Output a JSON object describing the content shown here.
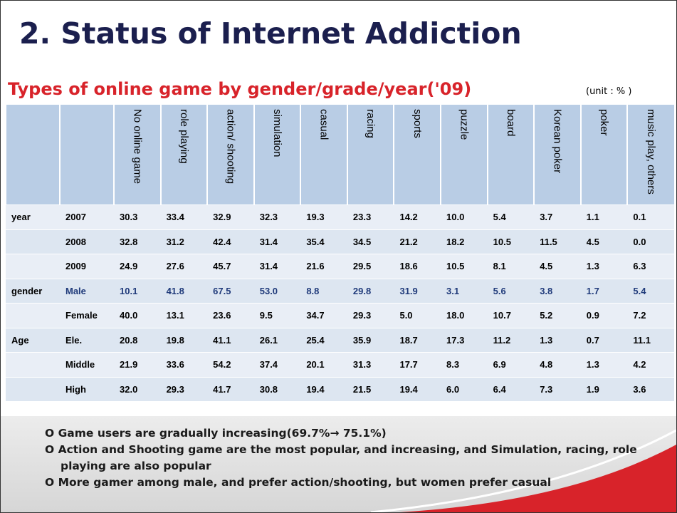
{
  "header": {
    "title": "2. Status of Internet Addiction",
    "subtitle": "Types of online game by gender/grade/year('09)",
    "unit": "(unit : % )"
  },
  "table": {
    "columns": [
      "No online game",
      "role playing",
      "action/ shooting",
      "simulation",
      "casual",
      "racing",
      "sports",
      "puzzle",
      "board",
      "Korean poker",
      "poker",
      "music play, others"
    ],
    "groups": [
      {
        "label": "year",
        "rows": [
          {
            "label": "2007",
            "values": [
              "30.3",
              "33.4",
              "32.9",
              "32.3",
              "19.3",
              "23.3",
              "14.2",
              "10.0",
              "5.4",
              "3.7",
              "1.1",
              "0.1"
            ]
          },
          {
            "label": "2008",
            "values": [
              "32.8",
              "31.2",
              "42.4",
              "31.4",
              "35.4",
              "34.5",
              "21.2",
              "18.2",
              "10.5",
              "11.5",
              "4.5",
              "0.0"
            ]
          },
          {
            "label": "2009",
            "values": [
              "24.9",
              "27.6",
              "45.7",
              "31.4",
              "21.6",
              "29.5",
              "18.6",
              "10.5",
              "8.1",
              "4.5",
              "1.3",
              "6.3"
            ]
          }
        ]
      },
      {
        "label": "gender",
        "rows": [
          {
            "label": "Male",
            "color": "#1f3a7a",
            "values": [
              "10.1",
              "41.8",
              "67.5",
              "53.0",
              "8.8",
              "29.8",
              "31.9",
              "3.1",
              "5.6",
              "3.8",
              "1.7",
              "5.4"
            ]
          },
          {
            "label": "Female",
            "values": [
              "40.0",
              "13.1",
              "23.6",
              "9.5",
              "34.7",
              "29.3",
              "5.0",
              "18.0",
              "10.7",
              "5.2",
              "0.9",
              "7.2"
            ]
          }
        ]
      },
      {
        "label": "Age",
        "rows": [
          {
            "label": "Ele.",
            "values": [
              "20.8",
              "19.8",
              "41.1",
              "26.1",
              "25.4",
              "35.9",
              "18.7",
              "17.3",
              "11.2",
              "1.3",
              "0.7",
              "11.1"
            ]
          },
          {
            "label": "Middle",
            "values": [
              "21.9",
              "33.6",
              "54.2",
              "37.4",
              "20.1",
              "31.3",
              "17.7",
              "8.3",
              "6.9",
              "4.8",
              "1.3",
              "4.2"
            ]
          },
          {
            "label": "High",
            "values": [
              "32.0",
              "29.3",
              "41.7",
              "30.8",
              "19.4",
              "21.5",
              "19.4",
              "6.0",
              "6.4",
              "7.3",
              "1.9",
              "3.6"
            ]
          }
        ]
      }
    ]
  },
  "bullets": [
    "O Game users are gradually increasing(69.7%→ 75.1%)",
    "O Action and Shooting game are the most popular, and increasing, and Simulation, racing, role playing are also popular",
    "O More gamer among male, and prefer action/shooting, but women prefer casual"
  ]
}
